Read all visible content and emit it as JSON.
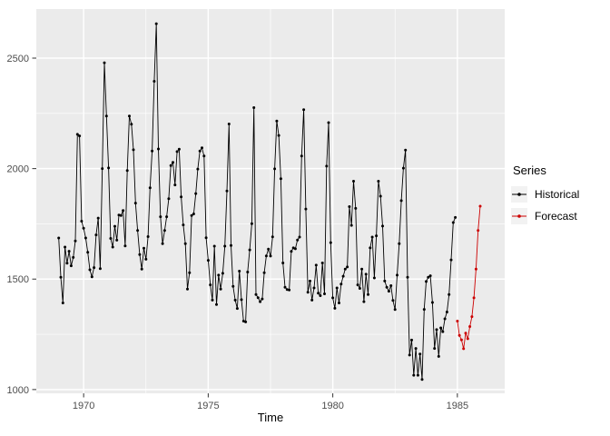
{
  "chart": {
    "xlabel": "Time",
    "legend": {
      "title": "Series",
      "items": [
        {
          "label": "Historical",
          "color": "#000000"
        },
        {
          "label": "Forecast",
          "color": "#cc0000"
        }
      ]
    },
    "panel_bg": "#ebebeb",
    "grid_color": "#ffffff",
    "tick_color": "#333333",
    "tick_label_color": "#4d4d4d"
  },
  "chart_data": {
    "type": "line",
    "title": "",
    "xlabel": "Time",
    "ylabel": "",
    "grid": true,
    "legend_position": "right",
    "xlim": [
      1968.1,
      1986.9
    ],
    "ylim": [
      983,
      2722
    ],
    "x_ticks": [
      1970,
      1975,
      1980,
      1985
    ],
    "y_ticks": [
      1000,
      1500,
      2000,
      2500
    ],
    "x_minor": [
      1972.5,
      1977.5,
      1982.5
    ],
    "y_minor": [
      1250,
      1750,
      2250
    ],
    "frequency": "monthly",
    "series": [
      {
        "name": "Historical",
        "color": "#000000",
        "start": 1969.0,
        "step": 0.0833333,
        "values": [
          1686,
          1508,
          1392,
          1645,
          1572,
          1626,
          1560,
          1598,
          1673,
          2155,
          2148,
          1762,
          1730,
          1686,
          1621,
          1542,
          1510,
          1552,
          1700,
          1776,
          1547,
          2000,
          2479,
          2238,
          2003,
          1684,
          1645,
          1739,
          1676,
          1790,
          1788,
          1810,
          1650,
          1991,
          2238,
          2201,
          2085,
          1844,
          1720,
          1611,
          1545,
          1640,
          1590,
          1692,
          1913,
          2080,
          2395,
          2656,
          2089,
          1782,
          1660,
          1720,
          1782,
          1864,
          2014,
          2028,
          1926,
          2077,
          2088,
          1872,
          1745,
          1660,
          1455,
          1529,
          1788,
          1795,
          1887,
          1998,
          2080,
          2094,
          2057,
          1687,
          1585,
          1474,
          1405,
          1649,
          1385,
          1518,
          1455,
          1526,
          1649,
          1899,
          2202,
          1652,
          1467,
          1405,
          1367,
          1536,
          1407,
          1310,
          1306,
          1532,
          1632,
          1751,
          2276,
          1430,
          1416,
          1398,
          1410,
          1529,
          1605,
          1636,
          1604,
          1691,
          1999,
          2215,
          2150,
          1954,
          1573,
          1463,
          1453,
          1451,
          1625,
          1641,
          1637,
          1677,
          1690,
          2057,
          2267,
          1817,
          1440,
          1491,
          1405,
          1460,
          1563,
          1436,
          1425,
          1573,
          1433,
          2011,
          2208,
          1665,
          1415,
          1368,
          1460,
          1392,
          1477,
          1513,
          1545,
          1555,
          1828,
          1743,
          1943,
          1820,
          1474,
          1458,
          1545,
          1398,
          1522,
          1430,
          1641,
          1690,
          1505,
          1696,
          1943,
          1875,
          1740,
          1491,
          1463,
          1445,
          1470,
          1403,
          1362,
          1518,
          1660,
          1855,
          2002,
          2084,
          1508,
          1156,
          1224,
          1065,
          1186,
          1065,
          1161,
          1046,
          1363,
          1489,
          1508,
          1515,
          1394,
          1186,
          1271,
          1150,
          1279,
          1262,
          1320,
          1351,
          1430,
          1587,
          1756,
          1779
        ]
      },
      {
        "name": "Forecast",
        "color": "#cc0000",
        "start": 1985.0,
        "step": 0.0833333,
        "values": [
          1310,
          1245,
          1225,
          1185,
          1255,
          1230,
          1285,
          1330,
          1415,
          1545,
          1720,
          1830
        ]
      }
    ]
  }
}
